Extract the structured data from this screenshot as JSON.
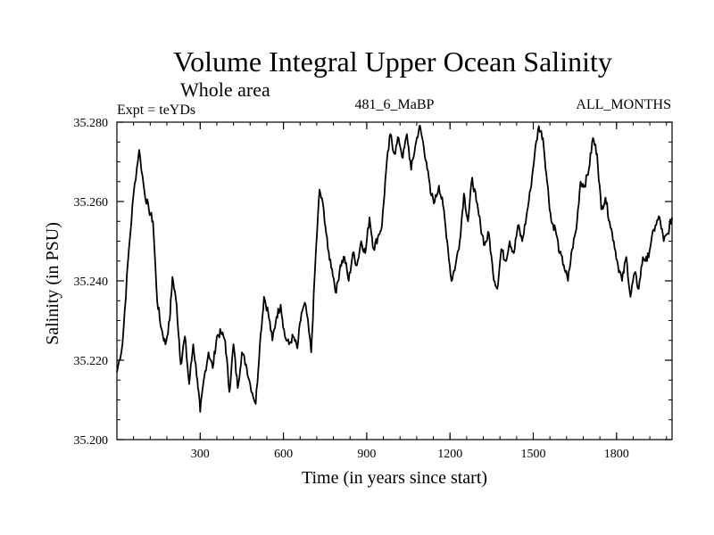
{
  "chart_data": {
    "type": "line",
    "title": "Volume Integral Upper Ocean Salinity",
    "subtitle": "Whole area",
    "expt_label": "Expt = teYDs",
    "center_label": "481_6_MaBP",
    "right_label": "ALL_MONTHS",
    "xlabel": "Time (in years since start)",
    "ylabel": "Salinity (in PSU)",
    "xlim": [
      0,
      2000
    ],
    "ylim": [
      35.2,
      35.28
    ],
    "x_ticks": [
      {
        "value": 300,
        "label": "300"
      },
      {
        "value": 600,
        "label": "600"
      },
      {
        "value": 900,
        "label": "900"
      },
      {
        "value": 1200,
        "label": "1200"
      },
      {
        "value": 1500,
        "label": "1500"
      },
      {
        "value": 1800,
        "label": "1800"
      }
    ],
    "y_ticks": [
      {
        "value": 35.2,
        "label": "35.200"
      },
      {
        "value": 35.22,
        "label": "35.220"
      },
      {
        "value": 35.24,
        "label": "35.240"
      },
      {
        "value": 35.26,
        "label": "35.260"
      },
      {
        "value": 35.28,
        "label": "35.280"
      }
    ],
    "series": [
      {
        "name": "salinity",
        "color": "#000000",
        "x": [
          0,
          20,
          40,
          60,
          80,
          100,
          115,
          130,
          145,
          160,
          175,
          190,
          200,
          215,
          230,
          245,
          260,
          275,
          290,
          300,
          315,
          330,
          345,
          360,
          375,
          390,
          405,
          420,
          435,
          450,
          465,
          480,
          500,
          515,
          530,
          545,
          560,
          575,
          590,
          605,
          620,
          635,
          650,
          665,
          680,
          700,
          715,
          730,
          745,
          760,
          775,
          790,
          805,
          820,
          835,
          850,
          865,
          880,
          895,
          910,
          925,
          940,
          955,
          970,
          985,
          1000,
          1015,
          1030,
          1045,
          1060,
          1075,
          1090,
          1100,
          1115,
          1130,
          1145,
          1160,
          1175,
          1190,
          1205,
          1220,
          1235,
          1250,
          1265,
          1280,
          1295,
          1310,
          1325,
          1340,
          1355,
          1370,
          1385,
          1400,
          1415,
          1430,
          1445,
          1460,
          1475,
          1490,
          1505,
          1520,
          1535,
          1550,
          1565,
          1580,
          1595,
          1610,
          1625,
          1640,
          1655,
          1670,
          1685,
          1700,
          1715,
          1730,
          1745,
          1760,
          1775,
          1790,
          1805,
          1820,
          1835,
          1850,
          1865,
          1880,
          1895,
          1910,
          1925,
          1940,
          1955,
          1970,
          1985,
          2000
        ],
        "values": [
          35.217,
          35.224,
          35.245,
          35.262,
          35.273,
          35.262,
          35.258,
          35.255,
          35.235,
          35.228,
          35.224,
          35.23,
          35.241,
          35.234,
          35.219,
          35.226,
          35.214,
          35.224,
          35.215,
          35.207,
          35.216,
          35.222,
          35.218,
          35.226,
          35.227,
          35.225,
          35.212,
          35.224,
          35.213,
          35.222,
          35.219,
          35.214,
          35.209,
          35.224,
          35.236,
          35.232,
          35.225,
          35.231,
          35.234,
          35.226,
          35.224,
          35.226,
          35.223,
          35.232,
          35.234,
          35.222,
          35.245,
          35.263,
          35.258,
          35.248,
          35.243,
          35.237,
          35.244,
          35.246,
          35.24,
          35.247,
          35.244,
          35.25,
          35.247,
          35.256,
          35.248,
          35.251,
          35.254,
          35.268,
          35.277,
          35.272,
          35.276,
          35.271,
          35.277,
          35.268,
          35.274,
          35.279,
          35.276,
          35.27,
          35.262,
          35.26,
          35.264,
          35.259,
          35.25,
          35.24,
          35.244,
          35.25,
          35.262,
          35.255,
          35.266,
          35.26,
          35.254,
          35.249,
          35.252,
          35.242,
          35.238,
          35.248,
          35.245,
          35.25,
          35.247,
          35.254,
          35.25,
          35.256,
          35.263,
          35.272,
          35.279,
          35.276,
          35.265,
          35.255,
          35.253,
          35.247,
          35.244,
          35.24,
          35.248,
          35.253,
          35.265,
          35.264,
          35.268,
          35.276,
          35.272,
          35.258,
          35.261,
          35.255,
          35.25,
          35.244,
          35.24,
          35.246,
          35.236,
          35.242,
          35.238,
          35.246,
          35.245,
          35.25,
          35.254,
          35.256,
          35.25,
          35.252,
          35.256
        ]
      }
    ]
  }
}
